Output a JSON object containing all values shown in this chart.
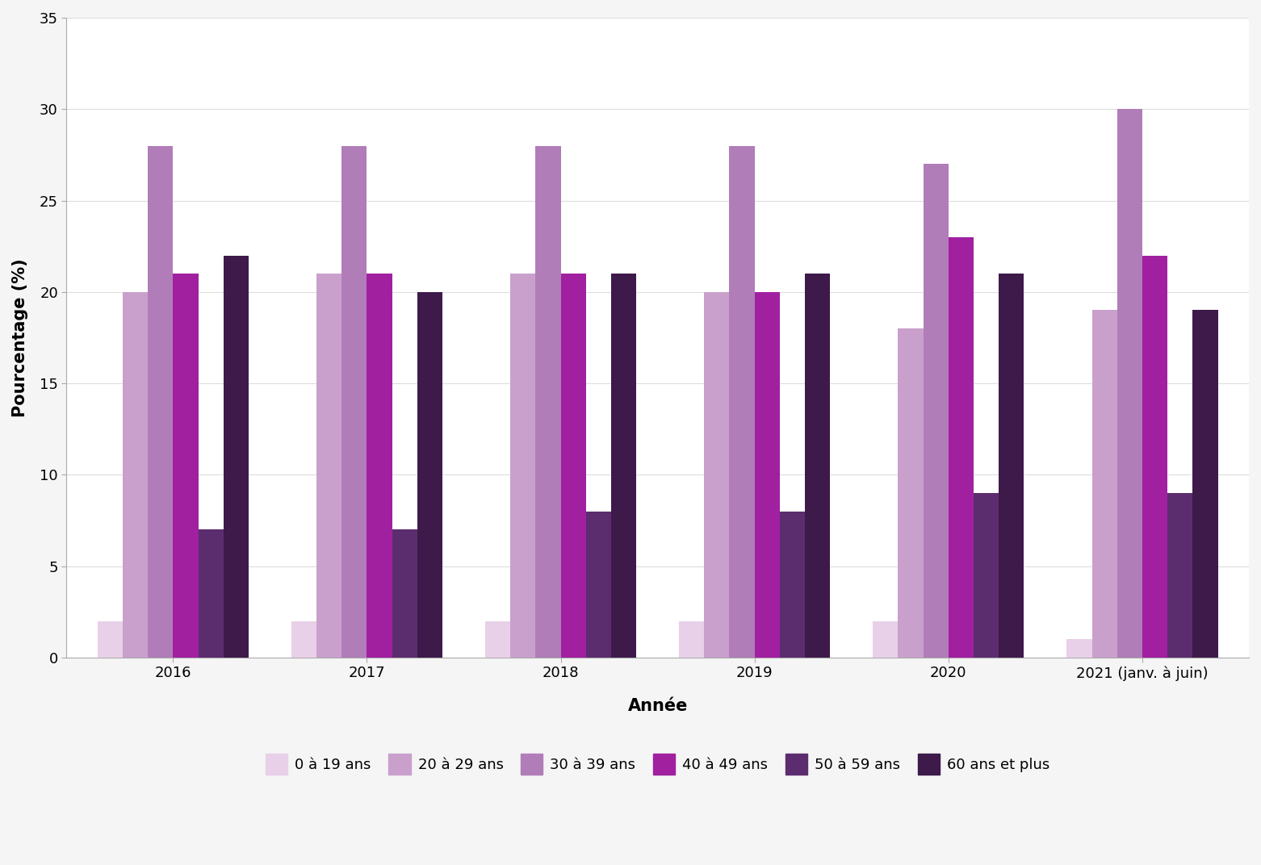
{
  "years": [
    "2016",
    "2017",
    "2018",
    "2019",
    "2020",
    "2021 (janv. à juin)"
  ],
  "age_groups": [
    "0 à 19 ans",
    "20 à 29 ans",
    "30 à 39 ans",
    "40 à 49 ans",
    "50 à 59 ans",
    "60 ans et plus"
  ],
  "colors": [
    "#e8d0e8",
    "#c9a0cc",
    "#b07db8",
    "#a020a0",
    "#5c2d6e",
    "#3d1a4a"
  ],
  "values": {
    "0 à 19 ans": [
      2,
      2,
      2,
      2,
      2,
      1
    ],
    "20 à 29 ans": [
      20,
      21,
      21,
      20,
      18,
      19
    ],
    "30 à 39 ans": [
      28,
      28,
      28,
      28,
      27,
      30
    ],
    "40 à 49 ans": [
      21,
      21,
      21,
      20,
      23,
      22
    ],
    "50 à 59 ans": [
      7,
      7,
      8,
      8,
      9,
      9
    ],
    "60 ans et plus": [
      22,
      20,
      21,
      21,
      21,
      19
    ]
  },
  "ylabel": "Pourcentage (%)",
  "xlabel": "Année",
  "ylim": [
    0,
    35
  ],
  "yticks": [
    0,
    5,
    10,
    15,
    20,
    25,
    30,
    35
  ],
  "background_color": "#f5f5f5",
  "plot_bg_color": "#ffffff",
  "bar_width": 0.13,
  "axis_label_fontsize": 15,
  "tick_fontsize": 13,
  "legend_fontsize": 13
}
